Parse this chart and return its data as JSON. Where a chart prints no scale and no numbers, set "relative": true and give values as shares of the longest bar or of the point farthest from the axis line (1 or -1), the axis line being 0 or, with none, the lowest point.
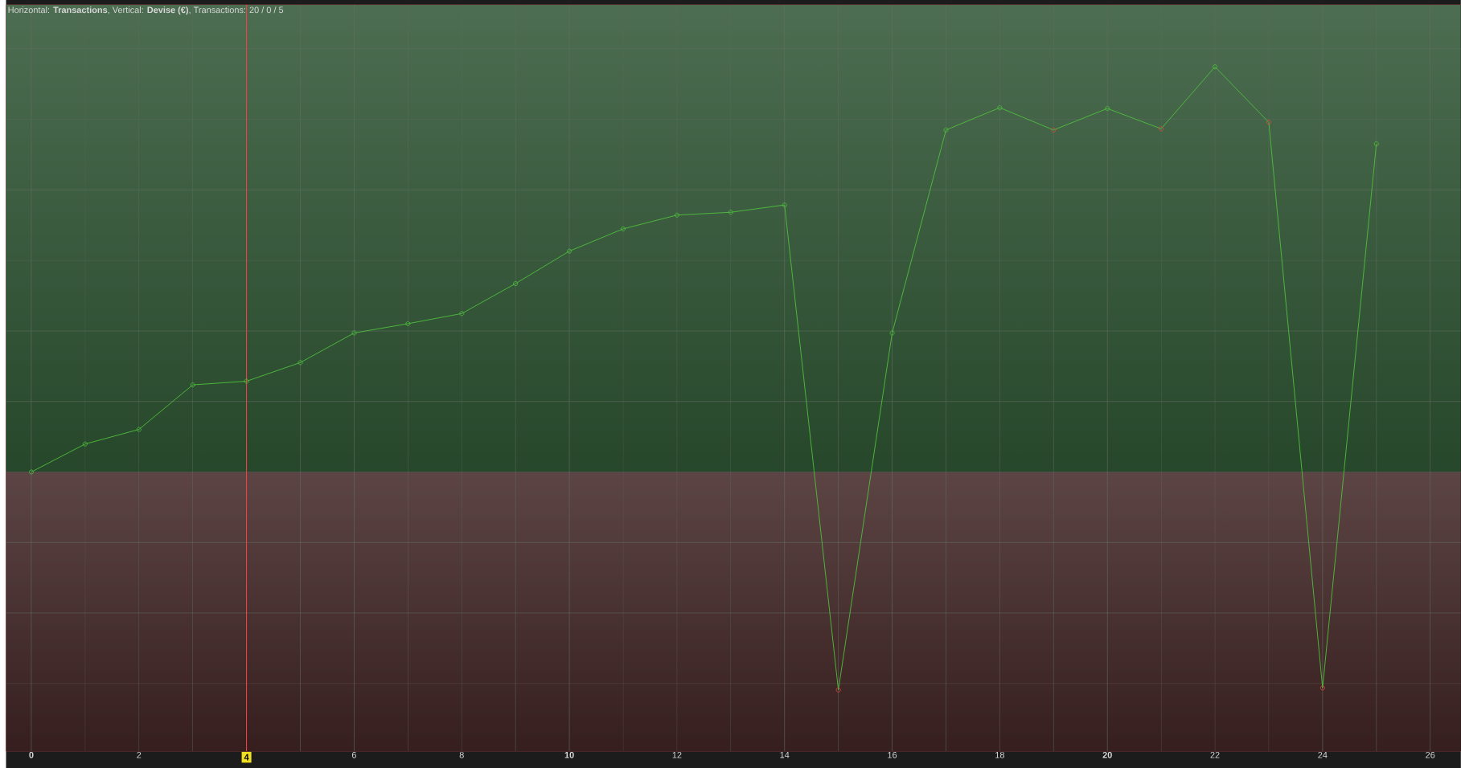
{
  "chart_data": {
    "type": "line",
    "title": "Horizontal: **Transactions**, Vertical: **Devise (€)**, Transactions: 20 / 0 / 5",
    "relative": true,
    "x": [
      0,
      1,
      2,
      3,
      4,
      5,
      6,
      7,
      8,
      9,
      10,
      11,
      12,
      13,
      14,
      15,
      16,
      17,
      18,
      19,
      20,
      21,
      22,
      23,
      24,
      25
    ],
    "values": [
      0,
      0.069,
      0.105,
      0.215,
      0.224,
      0.27,
      0.343,
      0.366,
      0.391,
      0.465,
      0.545,
      0.6,
      0.634,
      0.641,
      0.659,
      -0.538,
      0.343,
      0.844,
      0.899,
      0.844,
      0.897,
      0.847,
      1,
      0.863,
      -0.533,
      0.81
    ],
    "colors": [
      "#4ec03c",
      "#4ec03c",
      "#4ec03c",
      "#4ec03c",
      "#4ec03c",
      "#4ec03c",
      "#4ec03c",
      "#4ec03c",
      "#4ec03c",
      "#4ec03c",
      "#4ec03c",
      "#4ec03c",
      "#4ec03c",
      "#4ec03c",
      "#4ec03c",
      "#e04848",
      "#4ec03c",
      "#4ec03c",
      "#4ec03c",
      "#e04848",
      "#4ec03c",
      "#e04848",
      "#4ec03c",
      "#e04848",
      "#e04848",
      "#4ec03c"
    ],
    "marker": "circle",
    "xlim": [
      -0.47,
      26.57
    ],
    "xticks": [
      0,
      2,
      4,
      6,
      8,
      10,
      12,
      14,
      16,
      18,
      20,
      22,
      24,
      26
    ],
    "ref_lines": [
      {
        "axis": "x",
        "value": 4,
        "color": "#ff4040"
      }
    ],
    "bands": [
      {
        "axis": "y",
        "from": 0,
        "to": 1.153,
        "color": "#2e5433"
      },
      {
        "axis": "y",
        "from": -0.689,
        "to": 0,
        "color": "#402424"
      }
    ],
    "grid": true,
    "tick_labels": "x"
  }
}
